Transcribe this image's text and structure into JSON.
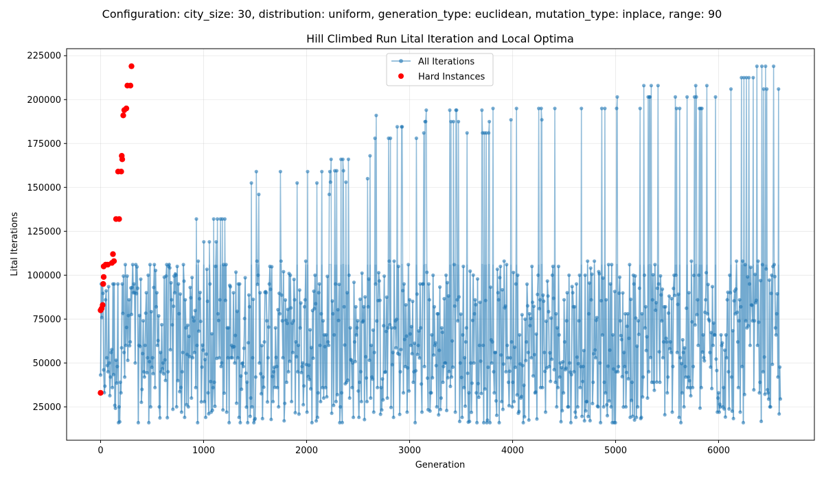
{
  "figure": {
    "suptitle": "Configuration: city_size: 30, distribution: uniform, generation_type: euclidean, mutation_type: inplace, range: 90"
  },
  "chart_data": {
    "type": "line",
    "title": "Hill Climbed Run Lital Iteration and Local Optima",
    "xlabel": "Generation",
    "ylabel": "Lital Iterations",
    "xlim": [
      -330,
      6930
    ],
    "ylim": [
      6000,
      229000
    ],
    "xticks": [
      0,
      1000,
      2000,
      3000,
      4000,
      5000,
      6000
    ],
    "yticks": [
      25000,
      50000,
      75000,
      100000,
      125000,
      150000,
      175000,
      200000,
      225000
    ],
    "grid": true,
    "legend_position": "top-center",
    "colors": {
      "all_iterations": "#1f77b4",
      "hard_instances": "#ff0000"
    },
    "series": [
      {
        "name": "All Iterations",
        "kind": "line-with-markers",
        "x_range": [
          0,
          6600
        ],
        "value_levels": [
          16000,
          19000,
          22000,
          25000,
          28000,
          30000,
          33000,
          36000,
          39000,
          42000,
          45000,
          48000,
          50000,
          53000,
          56000,
          60000,
          62000,
          66000,
          70000,
          74000,
          78000,
          82000,
          86000,
          90000,
          95000,
          100000,
          105000,
          106000,
          108000
        ],
        "cycle_peaks": [
          [
            0,
            95000
          ],
          [
            210,
            106000
          ],
          [
            450,
            106000
          ],
          [
            650,
            106000
          ],
          [
            880,
            132000
          ],
          [
            1060,
            132000
          ],
          [
            1250,
            159000
          ],
          [
            1440,
            159000
          ],
          [
            1640,
            159000
          ],
          [
            1830,
            159000
          ],
          [
            2030,
            159000
          ],
          [
            2230,
            166000
          ],
          [
            2440,
            168000
          ],
          [
            2660,
            191000
          ],
          [
            2880,
            191000
          ],
          [
            3120,
            194000
          ],
          [
            3350,
            194000
          ],
          [
            3580,
            194000
          ],
          [
            3810,
            195000
          ],
          [
            4060,
            195000
          ],
          [
            4320,
            195000
          ],
          [
            4580,
            208000
          ],
          [
            4840,
            208000
          ],
          [
            5120,
            208000
          ],
          [
            5400,
            208000
          ],
          [
            5680,
            208000
          ],
          [
            5980,
            219000
          ],
          [
            6290,
            219000
          ],
          [
            6580,
            219000
          ]
        ]
      },
      {
        "name": "Hard Instances",
        "kind": "scatter",
        "points": [
          [
            0,
            33000
          ],
          [
            0,
            80000
          ],
          [
            10,
            81000
          ],
          [
            20,
            83000
          ],
          [
            25,
            95000
          ],
          [
            30,
            99000
          ],
          [
            30,
            105000
          ],
          [
            50,
            106000
          ],
          [
            70,
            106000
          ],
          [
            110,
            107000
          ],
          [
            120,
            112000
          ],
          [
            130,
            108000
          ],
          [
            150,
            132000
          ],
          [
            180,
            132000
          ],
          [
            170,
            159000
          ],
          [
            200,
            159000
          ],
          [
            210,
            166000
          ],
          [
            205,
            168000
          ],
          [
            220,
            191000
          ],
          [
            230,
            194000
          ],
          [
            250,
            195000
          ],
          [
            260,
            208000
          ],
          [
            290,
            208000
          ],
          [
            300,
            219000
          ]
        ]
      }
    ]
  }
}
